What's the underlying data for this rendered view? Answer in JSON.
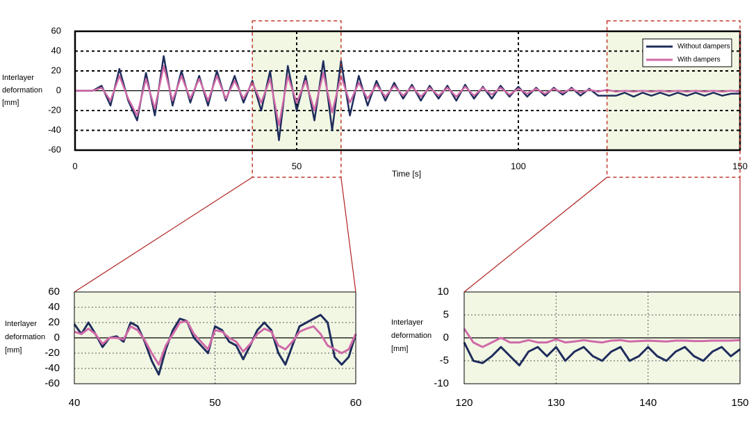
{
  "chart_data": [
    {
      "type": "line",
      "xlabel": "Time [s]",
      "ylabel": [
        "Interlayer",
        "deformation",
        "[mm]"
      ],
      "xlim": [
        0,
        150
      ],
      "xticks": [
        0,
        50,
        100,
        150
      ],
      "ylim": [
        -60,
        60
      ],
      "yticks": [
        -60,
        -40,
        -20,
        0,
        20,
        40,
        60
      ],
      "grid": true,
      "legend": "upper right",
      "x": [
        0,
        2,
        4,
        6,
        8,
        10,
        12,
        14,
        16,
        18,
        20,
        22,
        24,
        26,
        28,
        30,
        32,
        34,
        36,
        38,
        40,
        42,
        44,
        46,
        48,
        50,
        52,
        54,
        56,
        58,
        60,
        62,
        64,
        66,
        68,
        70,
        72,
        74,
        76,
        78,
        80,
        82,
        84,
        86,
        88,
        90,
        92,
        94,
        96,
        98,
        100,
        102,
        104,
        106,
        108,
        110,
        112,
        114,
        116,
        118,
        120,
        122,
        124,
        126,
        128,
        130,
        132,
        134,
        136,
        138,
        140,
        142,
        144,
        146,
        148,
        150
      ],
      "series": [
        {
          "name": "Without dampers",
          "color": "#1f2d5c",
          "values": [
            0,
            0,
            0,
            5,
            -15,
            22,
            -10,
            -30,
            18,
            -25,
            35,
            -15,
            20,
            -12,
            15,
            -15,
            20,
            -10,
            15,
            -12,
            10,
            -20,
            20,
            -50,
            25,
            -20,
            15,
            -30,
            30,
            -40,
            30,
            -25,
            15,
            -15,
            10,
            -10,
            8,
            -8,
            6,
            -10,
            5,
            -8,
            5,
            -10,
            6,
            -8,
            4,
            -8,
            5,
            -6,
            4,
            -6,
            3,
            -5,
            3,
            -4,
            3,
            -5,
            2,
            -5,
            -5,
            -5,
            -2,
            -6,
            -2,
            -5,
            -2,
            -5,
            -2,
            -5,
            -2,
            -5,
            -2,
            -5,
            -3,
            -3
          ]
        },
        {
          "name": "With dampers",
          "color": "#d06aa8",
          "values": [
            0,
            0,
            0,
            3,
            -10,
            15,
            -8,
            -25,
            12,
            -18,
            25,
            -10,
            15,
            -8,
            12,
            -10,
            15,
            -8,
            10,
            -8,
            8,
            -12,
            12,
            -35,
            15,
            -12,
            10,
            -20,
            18,
            -22,
            15,
            -12,
            8,
            -8,
            6,
            -6,
            5,
            -5,
            4,
            -6,
            3,
            -5,
            3,
            -6,
            4,
            -5,
            3,
            -4,
            3,
            -4,
            2,
            -3,
            2,
            -3,
            2,
            -2,
            2,
            -2,
            1,
            -1,
            1,
            -1,
            0,
            -1,
            0,
            -1,
            0,
            -1,
            0,
            -1,
            0,
            -1,
            0,
            -1,
            0,
            -1
          ]
        }
      ]
    },
    {
      "type": "line",
      "ylabel": [
        "Interlayer",
        "deformation",
        "[mm]"
      ],
      "xlim": [
        40,
        60
      ],
      "xticks": [
        40,
        50,
        60
      ],
      "ylim": [
        -60,
        60
      ],
      "yticks": [
        -60,
        -40,
        -20,
        0,
        20,
        40,
        60
      ],
      "grid": true,
      "background": "#f2f7e4",
      "x": [
        40,
        40.5,
        41,
        41.5,
        42,
        42.5,
        43,
        43.5,
        44,
        44.5,
        45,
        45.5,
        46,
        46.5,
        47,
        47.5,
        48,
        48.5,
        49,
        49.5,
        50,
        50.5,
        51,
        51.5,
        52,
        52.5,
        53,
        53.5,
        54,
        54.5,
        55,
        55.5,
        56,
        56.5,
        57,
        57.5,
        58,
        58.5,
        59,
        59.5,
        60
      ],
      "series": [
        {
          "color": "#1f2d5c",
          "values": [
            18,
            5,
            20,
            5,
            -12,
            0,
            2,
            -5,
            20,
            15,
            -5,
            -30,
            -48,
            -15,
            10,
            25,
            22,
            0,
            -10,
            -20,
            15,
            10,
            -5,
            -10,
            -28,
            -10,
            10,
            20,
            10,
            -20,
            -35,
            -10,
            15,
            20,
            25,
            30,
            20,
            -25,
            -35,
            -25,
            5
          ]
        },
        {
          "color": "#d06aa8",
          "values": [
            8,
            5,
            12,
            5,
            -8,
            0,
            0,
            -2,
            15,
            10,
            -3,
            -20,
            -35,
            -10,
            5,
            20,
            22,
            5,
            -5,
            -15,
            10,
            8,
            0,
            -5,
            -18,
            -8,
            5,
            12,
            8,
            -10,
            -15,
            -5,
            8,
            12,
            15,
            5,
            -10,
            -15,
            -20,
            -15,
            5
          ]
        }
      ]
    },
    {
      "type": "line",
      "ylabel": [
        "Interlayer",
        "deformation",
        "[mm]"
      ],
      "xlim": [
        120,
        150
      ],
      "xticks": [
        120,
        130,
        140,
        150
      ],
      "ylim": [
        -10,
        10
      ],
      "yticks": [
        -10,
        -5,
        0,
        5,
        10
      ],
      "grid": true,
      "background": "#f2f7e4",
      "x": [
        120,
        121,
        122,
        123,
        124,
        125,
        126,
        127,
        128,
        129,
        130,
        131,
        132,
        133,
        134,
        135,
        136,
        137,
        138,
        139,
        140,
        141,
        142,
        143,
        144,
        145,
        146,
        147,
        148,
        149,
        150
      ],
      "series": [
        {
          "color": "#1f2d5c",
          "values": [
            -1,
            -5,
            -5.5,
            -4,
            -2,
            -4,
            -6,
            -3,
            -2,
            -4,
            -2,
            -5,
            -3,
            -2,
            -4,
            -5,
            -3,
            -2,
            -5,
            -4,
            -2,
            -4,
            -5,
            -3,
            -2,
            -4,
            -5,
            -3,
            -2,
            -4,
            -2.5
          ]
        },
        {
          "color": "#d06aa8",
          "values": [
            2,
            -1,
            -2,
            -1,
            0,
            -1,
            -1,
            -0.5,
            -1,
            -1,
            -0.3,
            -1,
            -0.8,
            -0.5,
            -0.8,
            -1,
            -0.6,
            -0.5,
            -0.8,
            -0.7,
            -0.6,
            -0.7,
            -0.8,
            -0.6,
            -0.6,
            -0.7,
            -0.7,
            -0.6,
            -0.6,
            -0.6,
            -0.5
          ]
        }
      ]
    }
  ]
}
